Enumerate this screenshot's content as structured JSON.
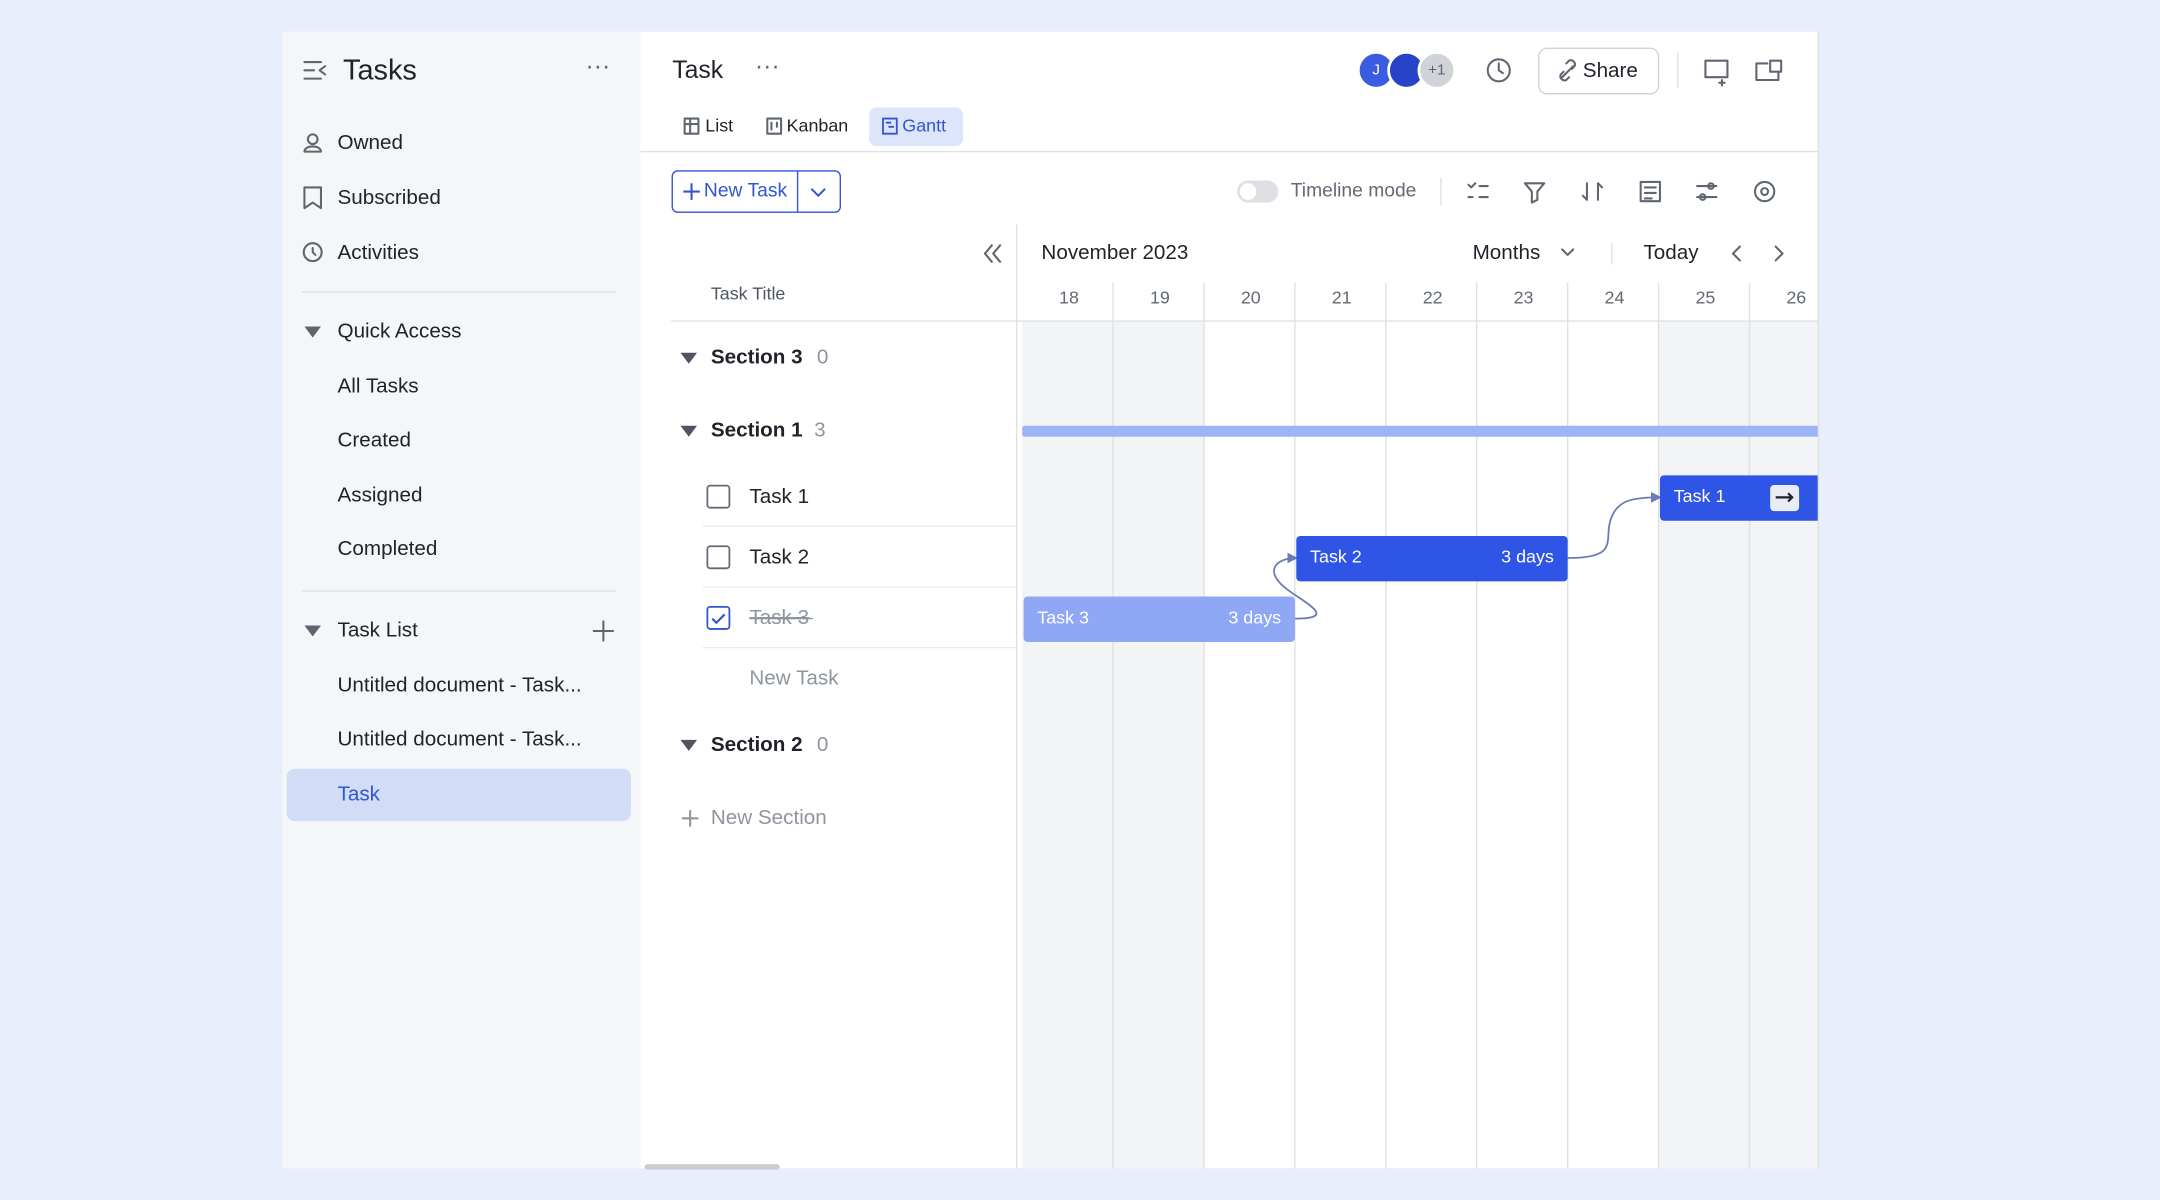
{
  "sidebar": {
    "title": "Tasks",
    "nav": [
      "Owned",
      "Subscribed",
      "Activities"
    ],
    "quick_access": {
      "title": "Quick Access",
      "items": [
        "All Tasks",
        "Created",
        "Assigned",
        "Completed"
      ]
    },
    "task_list": {
      "title": "Task List",
      "items": [
        "Untitled document - Task...",
        "Untitled document - Task...",
        "Task"
      ]
    }
  },
  "header": {
    "title": "Task",
    "avatars": [
      "J",
      "+1"
    ],
    "share": "Share",
    "tabs": [
      "List",
      "Kanban",
      "Gantt"
    ]
  },
  "toolbar": {
    "new_task": "New Task",
    "timeline_mode": "Timeline mode"
  },
  "gantt": {
    "month": "November 2023",
    "scale": "Months",
    "today": "Today",
    "column_title": "Task Title",
    "days": [
      18,
      19,
      20,
      21,
      22,
      23,
      24,
      25,
      26
    ],
    "sections": [
      {
        "name": "Section 3",
        "count": 0
      },
      {
        "name": "Section 1",
        "count": 3,
        "tasks": [
          "Task 1",
          "Task 2",
          "Task 3"
        ],
        "new_task": "New Task"
      },
      {
        "name": "Section 2",
        "count": 0
      }
    ],
    "new_section": "New Section",
    "bars": [
      {
        "task": "Task 1"
      },
      {
        "task": "Task 2",
        "duration": "3 days"
      },
      {
        "task": "Task 3",
        "duration": "3 days"
      }
    ]
  }
}
